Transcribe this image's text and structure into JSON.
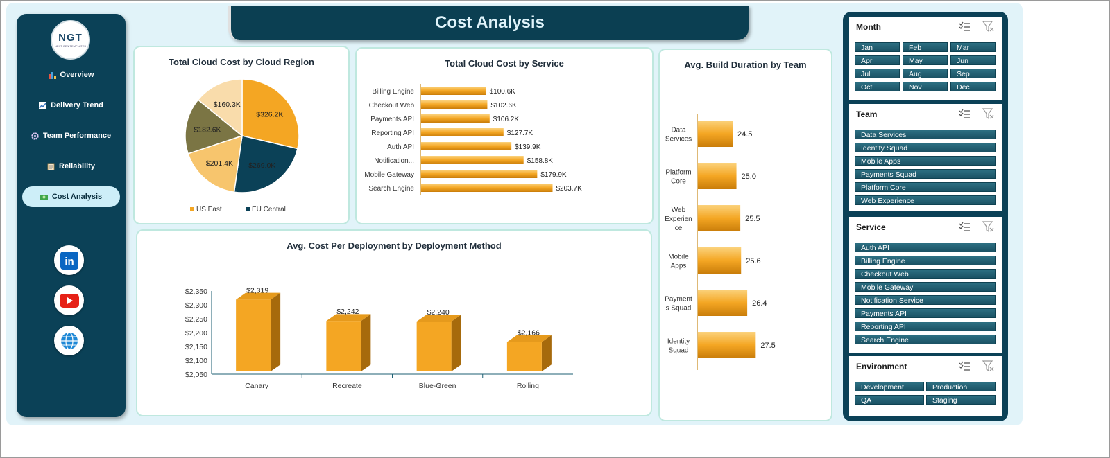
{
  "title": "Cost Analysis",
  "logo": {
    "text": "NGT",
    "tagline": "NEXT GEN TEMPLATES"
  },
  "nav": [
    {
      "label": "Overview",
      "icon": "bar-chart-icon",
      "active": false
    },
    {
      "label": "Delivery Trend",
      "icon": "line-chart-icon",
      "active": false
    },
    {
      "label": "Team Performance",
      "icon": "gear-icon",
      "active": false
    },
    {
      "label": "Reliability",
      "icon": "clipboard-icon",
      "active": false
    },
    {
      "label": "Cost Analysis",
      "icon": "money-icon",
      "active": true
    }
  ],
  "social": [
    "linkedin-icon",
    "youtube-icon",
    "globe-icon"
  ],
  "colors": {
    "orange": "#f4a623",
    "navy": "#0b4157",
    "olive": "#7b7544",
    "lightOrange": "#f7c56d",
    "peach": "#f9dcab"
  },
  "chart_data": [
    {
      "id": "region",
      "type": "pie",
      "title": "Total Cloud Cost by Cloud Region",
      "slices": [
        {
          "label": "US East",
          "value": 326.2,
          "display": "$326.2K",
          "color": "#f4a623"
        },
        {
          "label": "EU Central",
          "value": 269.0,
          "display": "$269.0K",
          "color": "#0b4157"
        },
        {
          "label": "",
          "value": 201.4,
          "display": "$201.4K",
          "color": "#f7c56d"
        },
        {
          "label": "",
          "value": 182.6,
          "display": "$182.6K",
          "color": "#7b7544"
        },
        {
          "label": "",
          "value": 160.3,
          "display": "$160.3K",
          "color": "#f9dcab"
        }
      ],
      "legend": [
        "US East",
        "EU Central"
      ],
      "legend_position": "bottom"
    },
    {
      "id": "service",
      "type": "bar",
      "orientation": "horizontal",
      "title": "Total Cloud Cost by Service",
      "categories": [
        "Billing Engine",
        "Checkout Web",
        "Payments API",
        "Reporting API",
        "Auth API",
        "Notification...",
        "Mobile Gateway",
        "Search Engine"
      ],
      "values": [
        100.6,
        102.6,
        106.2,
        127.7,
        139.9,
        158.8,
        179.9,
        203.7
      ],
      "labels": [
        "$100.6K",
        "$102.6K",
        "$106.2K",
        "$127.7K",
        "$139.9K",
        "$158.8K",
        "$179.9K",
        "$203.7K"
      ]
    },
    {
      "id": "build",
      "type": "bar",
      "orientation": "horizontal",
      "title": "Avg. Build Duration by Team",
      "categories": [
        [
          "Data",
          "Services"
        ],
        [
          "Platform",
          "Core"
        ],
        [
          "Web",
          "Experien",
          "ce"
        ],
        [
          "Mobile",
          "Apps"
        ],
        [
          "Payment",
          "s Squad"
        ],
        [
          "Identity",
          "Squad"
        ]
      ],
      "values": [
        24.5,
        25.0,
        25.5,
        25.6,
        26.4,
        27.5
      ],
      "labels": [
        "24.5",
        "25.0",
        "25.5",
        "25.6",
        "26.4",
        "27.5"
      ]
    },
    {
      "id": "deploy",
      "type": "bar",
      "title": "Avg. Cost Per Deployment by Deployment Method",
      "categories": [
        "Canary",
        "Recreate",
        "Blue-Green",
        "Rolling"
      ],
      "values": [
        2319,
        2242,
        2240,
        2166
      ],
      "labels": [
        "$2,319",
        "$2,242",
        "$2,240",
        "$2,166"
      ],
      "ylim": [
        2050,
        2350
      ],
      "yticks": [
        "$2,050",
        "$2,100",
        "$2,150",
        "$2,200",
        "$2,250",
        "$2,300",
        "$2,350"
      ],
      "grid": false
    }
  ],
  "slicers": {
    "month": {
      "header": "Month",
      "items": [
        "Jan",
        "Feb",
        "Mar",
        "Apr",
        "May",
        "Jun",
        "Jul",
        "Aug",
        "Sep",
        "Oct",
        "Nov",
        "Dec"
      ]
    },
    "team": {
      "header": "Team",
      "items": [
        "Data Services",
        "Identity Squad",
        "Mobile Apps",
        "Payments Squad",
        "Platform Core",
        "Web Experience"
      ]
    },
    "service": {
      "header": "Service",
      "items": [
        "Auth API",
        "Billing Engine",
        "Checkout Web",
        "Mobile Gateway",
        "Notification Service",
        "Payments API",
        "Reporting API",
        "Search Engine"
      ]
    },
    "environment": {
      "header": "Environment",
      "items": [
        "Development",
        "Production",
        "QA",
        "Staging"
      ]
    }
  }
}
